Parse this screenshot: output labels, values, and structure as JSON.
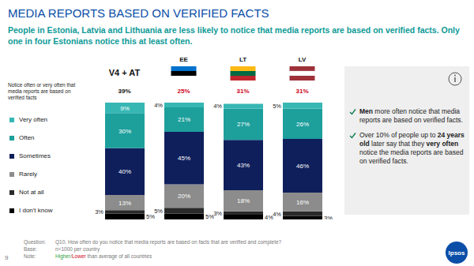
{
  "chart_data": {
    "type": "bar",
    "stacked": true,
    "data_labels": true,
    "tick_labels": "x",
    "title": "MEDIA REPORTS BASED ON VERIFIED FACTS",
    "subtitle": "People in Estonia, Latvia and Lithuania are less likely to notice that media reports are based on verified facts. Only one in four Estonians notice this at least often.",
    "categories": [
      "V4 + AT",
      "EE",
      "LT",
      "LV"
    ],
    "ylim": [
      0,
      100
    ],
    "series": [
      {
        "name": "Very often",
        "color": "#36b7b4",
        "values": [
          9,
          4,
          4,
          5
        ],
        "value_labels": [
          "9%",
          "4%",
          "4%",
          "5%"
        ]
      },
      {
        "name": "Often",
        "color": "#1d9f9c",
        "values": [
          30,
          21,
          27,
          26
        ],
        "value_labels": [
          "30%",
          "21%",
          "27%",
          "26%"
        ]
      },
      {
        "name": "Sometimes",
        "color": "#0f1f5c",
        "values": [
          40,
          45,
          43,
          46
        ],
        "value_labels": [
          "40%",
          "45%",
          "43%",
          "46%"
        ]
      },
      {
        "name": "Rarely",
        "color": "#8c8c8c",
        "values": [
          13,
          20,
          18,
          16
        ],
        "value_labels": [
          "13%",
          "20%",
          "18%",
          "16%"
        ]
      },
      {
        "name": "Not at all",
        "color": "#2a2a2a",
        "values": [
          3,
          5,
          3,
          4
        ],
        "value_labels": [
          "3%",
          "5%",
          "3%",
          "4%"
        ]
      },
      {
        "name": "I don't know",
        "color": "#000000",
        "values": [
          5,
          5,
          4,
          3
        ],
        "value_labels": [
          "5%",
          "5%",
          "4%",
          "3%"
        ]
      }
    ],
    "summary": {
      "label": "Notice often or very often that media reports are based on verified facts",
      "values": [
        39,
        25,
        31,
        31
      ],
      "value_labels": [
        "39%",
        "25%",
        "31%",
        "31%"
      ]
    }
  },
  "side_notes": [
    [
      {
        "text": "Men",
        "bold": true
      },
      {
        "text": " more often notice that media reports are based on verified facts.",
        "bold": false
      }
    ],
    [
      {
        "text": "Over 10% of people up to ",
        "bold": false
      },
      {
        "text": "24 years old",
        "bold": true
      },
      {
        "text": " later say that they ",
        "bold": false
      },
      {
        "text": "very often",
        "bold": true
      },
      {
        "text": " notice the media reports are based on verified facts.",
        "bold": false
      }
    ]
  ],
  "footer": {
    "question_label": "Question:",
    "question": "Q10. How often do you notice that media reports are based on facts that are verified and complete?",
    "base_label": "Base:",
    "base": "n=1000 per country",
    "note_label": "Note:",
    "note_higher": "Higher",
    "note_sep": "/",
    "note_lower": "Lower",
    "note_rest": " than average of all countries"
  },
  "page": "9",
  "logo": "Ipsos"
}
